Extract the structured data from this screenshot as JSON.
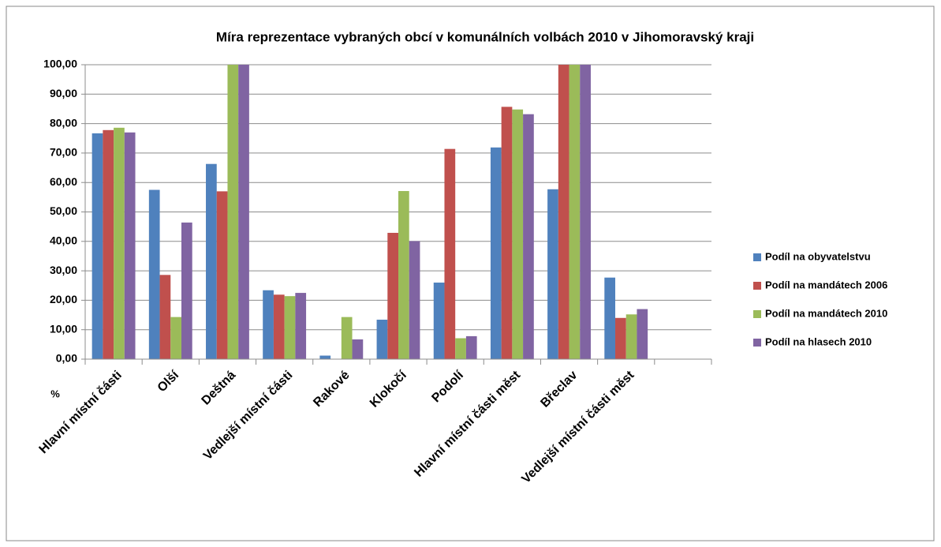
{
  "chart_data": {
    "type": "bar",
    "title": "Míra reprezentace vybraných  obcí v komunálních  volbách 2010 v Jihomoravský kraji",
    "ylabel": "%",
    "categories": [
      "Hlavní místní části",
      "Olší",
      "Deštná",
      "Vedlejší místní části",
      "Rakové",
      "Klokočí",
      "Podolí",
      "Hlavní místní části měst",
      "Břeclav",
      "Vedlejší místní části měst",
      null
    ],
    "series": [
      {
        "name": "Podíl na obyvatelstvu",
        "color": "#4f81bd",
        "values": [
          76.7,
          57.5,
          66.3,
          23.4,
          1.2,
          13.4,
          26.0,
          71.9,
          57.7,
          27.7,
          null
        ]
      },
      {
        "name": "Podíl na mandátech 2006",
        "color": "#c0504d",
        "values": [
          77.8,
          28.6,
          57.0,
          21.9,
          0,
          42.9,
          71.4,
          85.7,
          100,
          14.0,
          null
        ]
      },
      {
        "name": "Podíl na mandátech 2010",
        "color": "#9bbb59",
        "values": [
          78.6,
          14.3,
          100,
          21.4,
          14.3,
          57.1,
          7.1,
          84.8,
          100,
          15.2,
          null
        ]
      },
      {
        "name": "Podíl na hlasech 2010",
        "color": "#8064a2",
        "values": [
          77.0,
          46.4,
          100,
          22.5,
          6.7,
          40.1,
          7.8,
          83.2,
          100,
          17.0,
          null
        ]
      }
    ],
    "ylim": [
      0,
      100
    ],
    "yticks": [
      {
        "value": 0,
        "label": "0,00"
      },
      {
        "value": 10,
        "label": "10,00"
      },
      {
        "value": 20,
        "label": "20,00"
      },
      {
        "value": 30,
        "label": "30,00"
      },
      {
        "value": 40,
        "label": "40,00"
      },
      {
        "value": 50,
        "label": "50,00"
      },
      {
        "value": 60,
        "label": "60,00"
      },
      {
        "value": 70,
        "label": "70,00"
      },
      {
        "value": 80,
        "label": "80,00"
      },
      {
        "value": 90,
        "label": "90,00"
      },
      {
        "value": 100,
        "label": "100,00"
      }
    ],
    "grid": true,
    "legend": "right"
  }
}
